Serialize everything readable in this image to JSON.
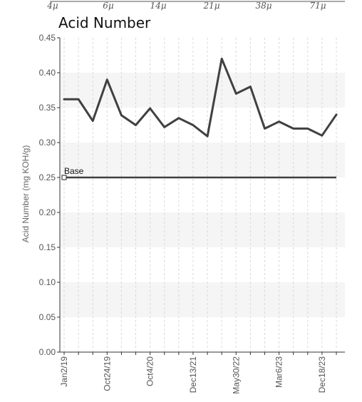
{
  "top_axis": {
    "labels": [
      "4μ",
      "6μ",
      "14μ",
      "21μ",
      "38μ",
      "71μ"
    ],
    "x": [
      4,
      6,
      14,
      21,
      38,
      71
    ]
  },
  "chart_data": {
    "type": "line",
    "title": "Acid Number",
    "ylabel": "Acid Number (mg KOH/g)",
    "xlabel": "",
    "ylim": [
      0,
      0.45
    ],
    "yticks": [
      0.0,
      0.05,
      0.1,
      0.15,
      0.2,
      0.25,
      0.3,
      0.35,
      0.4,
      0.45
    ],
    "ytick_labels": [
      "0.00",
      "0.05",
      "0.10",
      "0.15",
      "0.20",
      "0.25",
      "0.30",
      "0.35",
      "0.40",
      "0.45"
    ],
    "x_tick_labels": [
      "Jan2/19",
      "Oct24/19",
      "Oct4/20",
      "Dec13/21",
      "May30/22",
      "Mar6/23",
      "Dec18/23"
    ],
    "x_tick_sample_index": [
      0,
      3,
      6,
      9,
      12,
      15,
      18
    ],
    "banding": "alternating",
    "grid": "vertical-dashed",
    "series": [
      {
        "color": "#404040",
        "values": [
          0.362,
          0.362,
          0.331,
          0.39,
          0.339,
          0.325,
          0.349,
          0.322,
          0.335,
          0.325,
          0.309,
          0.42,
          0.37,
          0.38,
          0.32,
          0.33,
          0.32,
          0.32,
          0.31,
          0.34
        ]
      }
    ],
    "baseline": {
      "label": "Base",
      "value": 0.25,
      "color": "#404040"
    }
  }
}
